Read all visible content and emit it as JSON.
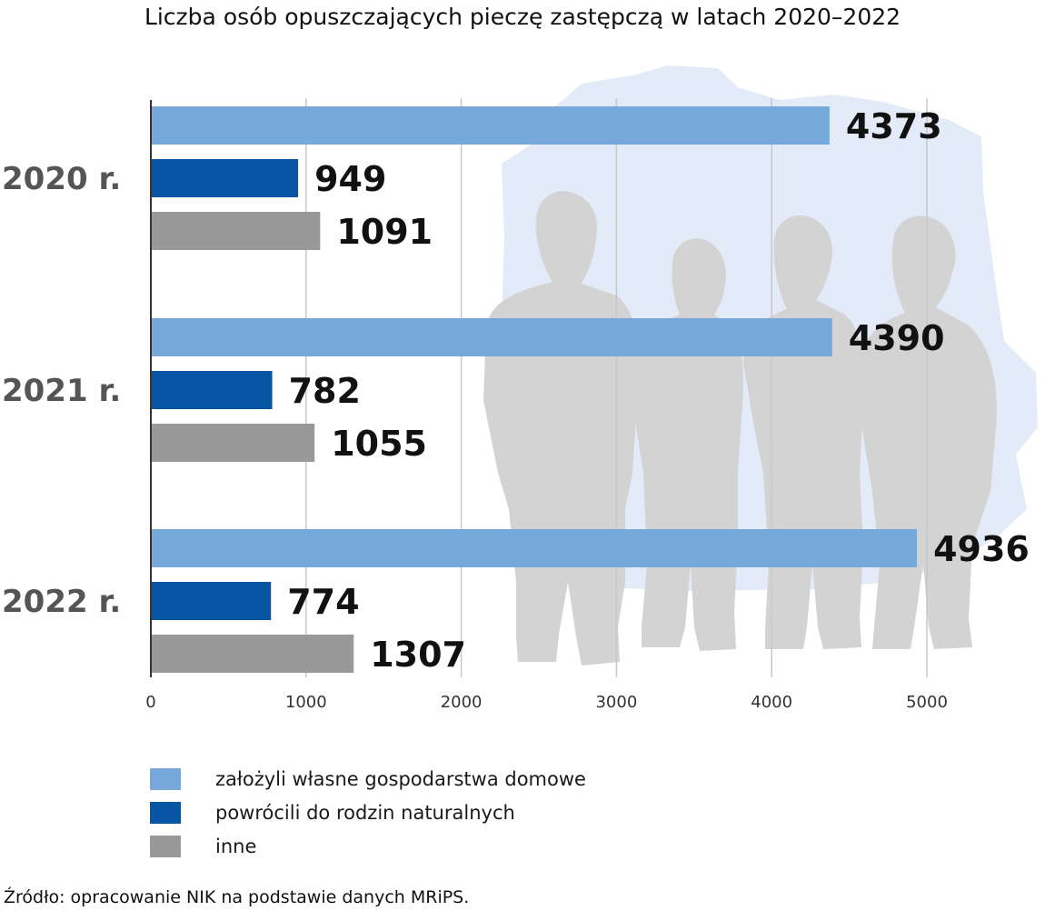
{
  "chart_data": {
    "type": "bar",
    "orientation": "horizontal",
    "title": "Liczba osób opuszczających pieczę zastępczą w latach 2020–2022",
    "categories": [
      "2020 r.",
      "2021 r.",
      "2022 r."
    ],
    "series": [
      {
        "name": "założyli własne gospodarstwa domowe",
        "color": "#77a8dc",
        "values": [
          4373,
          4390,
          4936
        ]
      },
      {
        "name": "powrócili do rodzin naturalnych",
        "color": "#0656a3",
        "values": [
          949,
          782,
          774
        ]
      },
      {
        "name": "inne",
        "color": "#999999",
        "values": [
          1091,
          1055,
          1307
        ]
      }
    ],
    "xlim": [
      0,
      5000
    ],
    "x_ticks": [
      "0",
      "1000",
      "2000",
      "3000",
      "4000",
      "5000"
    ],
    "grid": true,
    "legend_position": "bottom-left",
    "xlabel": "",
    "ylabel": ""
  },
  "source_note": "Źródło: opracowanie NIK na podstawie danych MRiPS."
}
